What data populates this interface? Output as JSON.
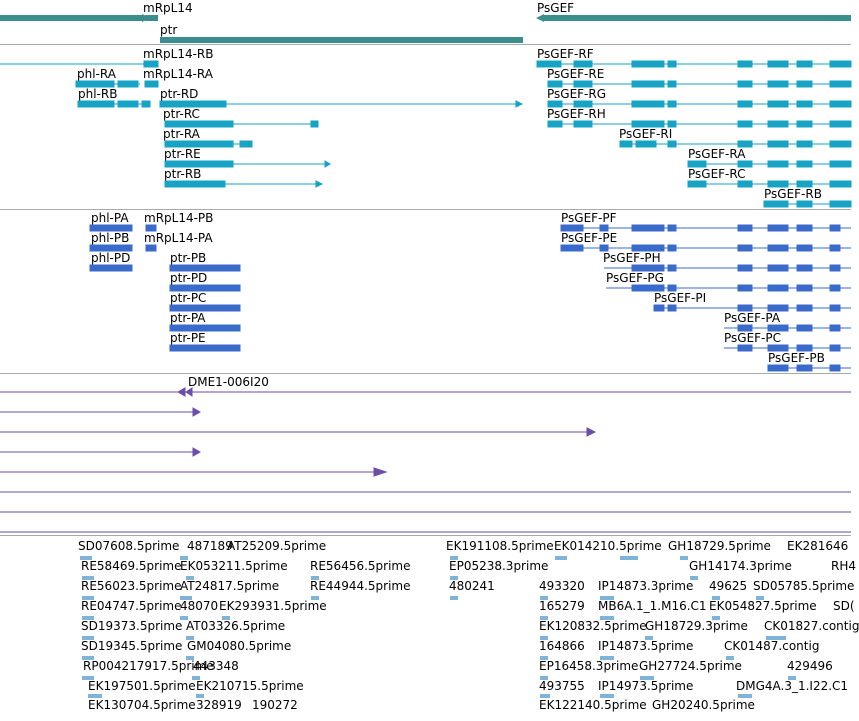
{
  "colors": {
    "gene": "#3b8e8e",
    "mrna": "#16a3c4",
    "cds": "#3a6bcb",
    "clone": "#6a4ea8",
    "est": "#7fb3d9",
    "separator": "#a9a9a9"
  },
  "tracks": {
    "genes": [
      {
        "label": "mRpL14"
      },
      {
        "label": "PsGEF"
      },
      {
        "label": "ptr"
      }
    ],
    "mrnas": [
      {
        "label": "mRpL14-RB"
      },
      {
        "label": "phl-RA"
      },
      {
        "label": "mRpL14-RA"
      },
      {
        "label": "phl-RB"
      },
      {
        "label": "ptr-RD"
      },
      {
        "label": "ptr-RC"
      },
      {
        "label": "ptr-RA"
      },
      {
        "label": "ptr-RE"
      },
      {
        "label": "ptr-RB"
      },
      {
        "label": "PsGEF-RF"
      },
      {
        "label": "PsGEF-RE"
      },
      {
        "label": "PsGEF-RG"
      },
      {
        "label": "PsGEF-RH"
      },
      {
        "label": "PsGEF-RI"
      },
      {
        "label": "PsGEF-RA"
      },
      {
        "label": "PsGEF-RC"
      },
      {
        "label": "PsGEF-RB"
      }
    ],
    "cds": [
      {
        "label": "phl-PA"
      },
      {
        "label": "mRpL14-PB"
      },
      {
        "label": "phl-PB"
      },
      {
        "label": "mRpL14-PA"
      },
      {
        "label": "phl-PD"
      },
      {
        "label": "ptr-PB"
      },
      {
        "label": "ptr-PD"
      },
      {
        "label": "ptr-PC"
      },
      {
        "label": "ptr-PA"
      },
      {
        "label": "ptr-PE"
      },
      {
        "label": "PsGEF-PF"
      },
      {
        "label": "PsGEF-PE"
      },
      {
        "label": "PsGEF-PH"
      },
      {
        "label": "PsGEF-PG"
      },
      {
        "label": "PsGEF-PI"
      },
      {
        "label": "PsGEF-PA"
      },
      {
        "label": "PsGEF-PC"
      },
      {
        "label": "PsGEF-PB"
      }
    ],
    "clones": [
      {
        "label": "DME1-006I20"
      }
    ],
    "ests": [
      "SD07608.5prime",
      "487189",
      "AT25209.5prime",
      "EK191108.5prime",
      "EK014210.5prime",
      "GH18729.5prime",
      "EK281646",
      "RE58469.5prime",
      "EK053211.5prime",
      "RE56456.5prime",
      "EP05238.3prime",
      "GH14174.3prime",
      "RH4",
      "RE56023.5prime",
      "AT24817.5prime",
      "RE44944.5prime",
      "480241",
      "493320",
      "IP14873.3prime",
      "49625",
      "SD05785.5prime",
      "RE04747.5prime",
      "48070",
      "EK293931.5prime",
      "165279",
      "MB6A.1_1.M16.C1",
      "EK054827.5prime",
      "SD(",
      "SD19373.5prime",
      "AT03326.5prime",
      "EK120832.5prime",
      "GH18729.3prime",
      "CK01827.contig",
      "SD19345.5prime",
      "GM04080.5prime",
      "164866",
      "IP14873.5prime",
      "CK01487.contig",
      "RP004217917.5prime",
      "443348",
      "EP16458.3prime",
      "GH27724.5prime",
      "429496",
      "EK197501.5prime",
      "EK210715.5prime",
      "493755",
      "IP14973.5prime",
      "DMG4A.3_1.I22.C1",
      "EK130704.5prime",
      "328919",
      "190272",
      "EK122140.5prime",
      "GH20240.5prime"
    ]
  }
}
